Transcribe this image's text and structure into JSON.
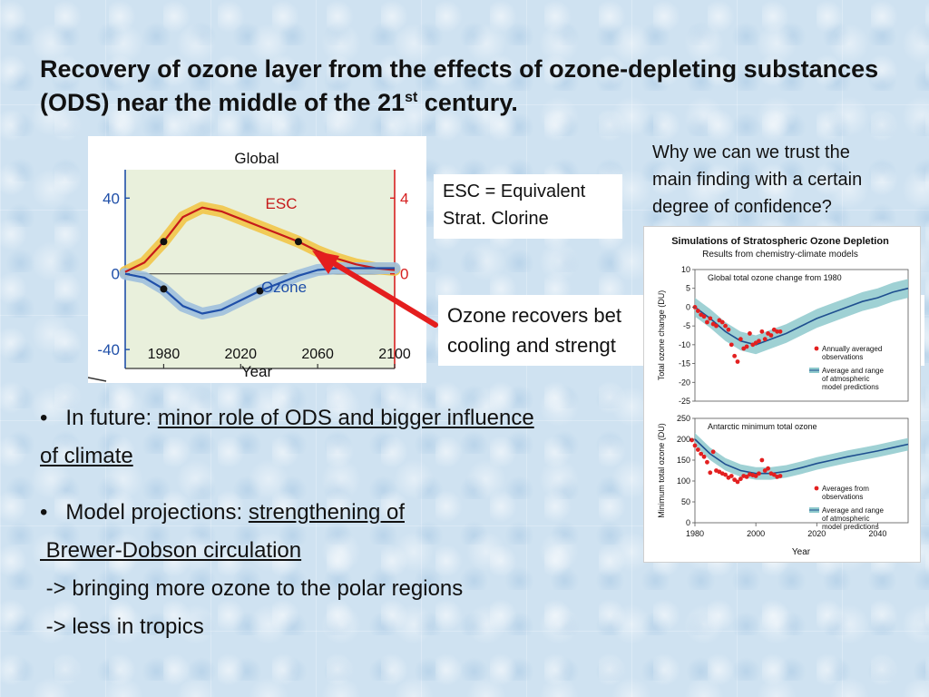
{
  "slide": {
    "title_main": "Recovery of ozone layer from the effects of ozone-depleting substances (ODS) near the middle of the 21",
    "title_sup": "st",
    "title_end": " century."
  },
  "esc_note": {
    "line1": "ESC = Equivalent",
    "line2": "Strat. Clorine"
  },
  "question": {
    "line1": "Why we can we trust the",
    "line2": "main finding with a certain",
    "line3": "degree of confidence?"
  },
  "ozone_note": {
    "line1": "Ozone recovers bet",
    "line2": "cooling and strengt"
  },
  "bullets": {
    "b1_prefix": "In future: ",
    "b1_underlined": "minor role of ODS and bigger influence",
    "b1_cont": "of climate",
    "b2_prefix": "Model projections: ",
    "b2_underlined": "strengthening of",
    "b2_cont": " Brewer-Dobson circulation",
    "b2_line3": " -> bringing more ozone to the polar regions",
    "b2_line4": " -> less in tropics",
    "bullet_char": "•"
  },
  "chart_data": [
    {
      "type": "line",
      "title": "Global",
      "xlabel": "Year",
      "x_ticks": [
        "1980",
        "2020",
        "2060",
        "2100"
      ],
      "xlim": [
        1960,
        2100
      ],
      "left_axis": {
        "ticks": [
          "40",
          "0",
          "-40"
        ],
        "ylim": [
          -50,
          55
        ]
      },
      "right_axis": {
        "ticks": [
          "4",
          "0"
        ],
        "ylim": [
          -5,
          5.5
        ],
        "color": "#d62020"
      },
      "series": [
        {
          "name": "ESC",
          "axis": "right",
          "color": "#c61a1a",
          "band_color": "#f2c548",
          "x": [
            1960,
            1970,
            1980,
            1990,
            2000,
            2010,
            2020,
            2030,
            2040,
            2050,
            2060,
            2070,
            2080,
            2090,
            2100
          ],
          "y": [
            0.1,
            0.6,
            1.7,
            3.0,
            3.5,
            3.3,
            2.9,
            2.5,
            2.1,
            1.7,
            1.2,
            0.8,
            0.5,
            0.3,
            0.2
          ],
          "markers": [
            [
              1980,
              1.7
            ],
            [
              2050,
              1.7
            ]
          ]
        },
        {
          "name": "Ozone",
          "axis": "left",
          "color": "#1f4fa8",
          "band_color": "#9ebfdd",
          "x": [
            1960,
            1970,
            1980,
            1990,
            2000,
            2010,
            2020,
            2030,
            2040,
            2050,
            2060,
            2070,
            2080,
            2090,
            2100
          ],
          "y": [
            0,
            -2,
            -8,
            -17,
            -21,
            -19,
            -14,
            -9,
            -5,
            -1,
            2,
            3,
            3,
            3,
            3
          ],
          "markers": [
            [
              1980,
              -8
            ],
            [
              2030,
              -9
            ]
          ]
        }
      ]
    },
    {
      "type": "scatter",
      "title": "Simulations of Stratospheric Ozone Depletion",
      "subtitle": "Results from chemistry-climate models",
      "xlabel": "Year",
      "x_ticks": [
        "1980",
        "2000",
        "2020",
        "2040"
      ],
      "xlim": [
        1980,
        2050
      ],
      "panels": [
        {
          "label": "Global total ozone change from 1980",
          "ylabel": "Total ozone change (DU)",
          "ylim": [
            -25,
            10
          ],
          "y_ticks": [
            "10",
            "5",
            "0",
            "-5",
            "-10",
            "-15",
            "-20",
            "-25"
          ],
          "legend": [
            "Annually averaged",
            "observations",
            "Average and range",
            "of atmospheric",
            "model predictions"
          ],
          "model": {
            "x": [
              1980,
              1985,
              1990,
              1995,
              2000,
              2005,
              2010,
              2015,
              2020,
              2025,
              2030,
              2035,
              2040,
              2045,
              2050
            ],
            "y": [
              0,
              -3,
              -6.5,
              -9,
              -10,
              -8.5,
              -7,
              -5,
              -3,
              -1.5,
              0,
              1.5,
              2.5,
              4,
              5
            ],
            "band": 2.5
          },
          "observations": {
            "x": [
              1980,
              1981,
              1982,
              1983,
              1984,
              1985,
              1986,
              1987,
              1988,
              1989,
              1990,
              1991,
              1992,
              1993,
              1994,
              1995,
              1996,
              1997,
              1998,
              1999,
              2000,
              2001,
              2002,
              2003,
              2004,
              2005,
              2006,
              2007,
              2008
            ],
            "y": [
              0,
              -1,
              -2,
              -2.5,
              -4,
              -3,
              -4.5,
              -5,
              -3.5,
              -4,
              -5,
              -6,
              -10,
              -13,
              -14.5,
              -8.5,
              -11,
              -10.5,
              -7,
              -10,
              -9.5,
              -9,
              -6.5,
              -8.5,
              -7,
              -7.5,
              -6,
              -6.5,
              -6.5
            ]
          }
        },
        {
          "label": "Antarctic minimum total ozone",
          "ylabel": "Minimum total ozone (DU)",
          "ylim": [
            0,
            250
          ],
          "y_ticks": [
            "250",
            "200",
            "150",
            "100",
            "50",
            "0"
          ],
          "legend": [
            "Averages from",
            "observations",
            "Average and range",
            "of atmospheric",
            "model predictions"
          ],
          "model": {
            "x": [
              1980,
              1985,
              1990,
              1995,
              2000,
              2005,
              2010,
              2015,
              2020,
              2025,
              2030,
              2035,
              2040,
              2045,
              2050
            ],
            "y": [
              200,
              165,
              140,
              125,
              118,
              118,
              123,
              132,
              142,
              150,
              158,
              165,
              172,
              180,
              188
            ],
            "band": 15
          },
          "observations": {
            "x": [
              1979,
              1980,
              1981,
              1982,
              1983,
              1984,
              1985,
              1986,
              1987,
              1988,
              1989,
              1990,
              1991,
              1992,
              1993,
              1994,
              1995,
              1996,
              1997,
              1998,
              1999,
              2000,
              2001,
              2002,
              2003,
              2004,
              2005,
              2006,
              2007,
              2008
            ],
            "y": [
              198,
              185,
              175,
              165,
              158,
              145,
              120,
              170,
              125,
              122,
              118,
              115,
              108,
              112,
              103,
              98,
              105,
              112,
              110,
              116,
              114,
              112,
              118,
              150,
              125,
              130,
              118,
              115,
              110,
              112
            ]
          }
        }
      ]
    }
  ]
}
